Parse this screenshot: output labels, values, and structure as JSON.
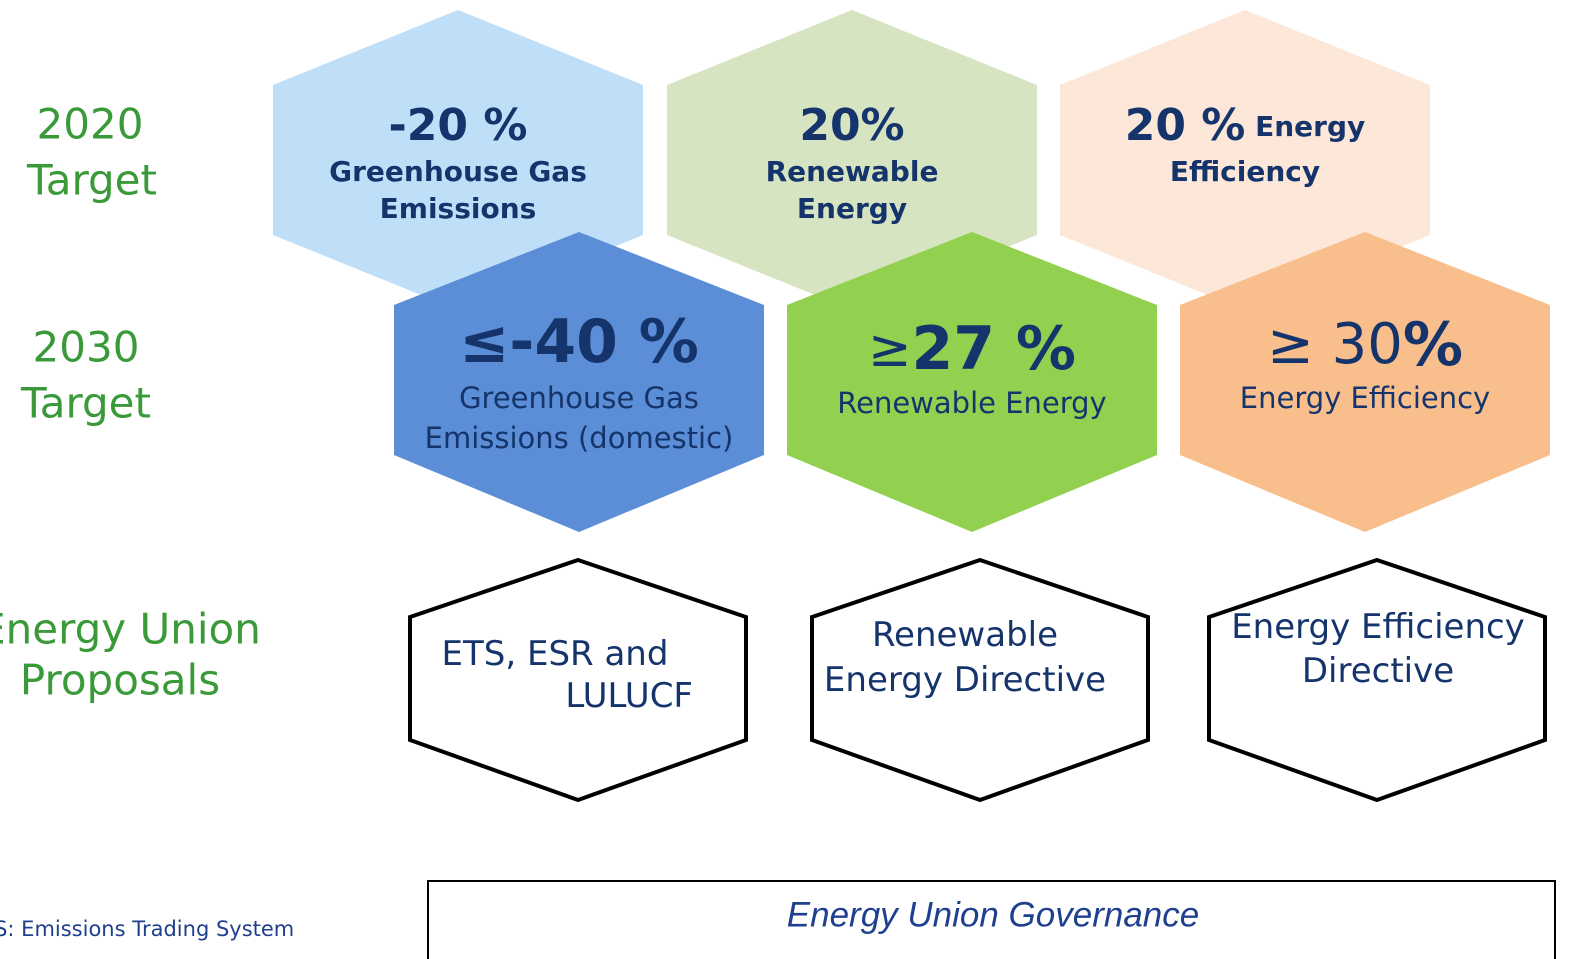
{
  "rows": [
    {
      "label": [
        "2020",
        "Target"
      ],
      "hexes": [
        {
          "lines": [
            [
              "-20 %"
            ],
            [
              "Greenhouse Gas"
            ],
            [
              "Emissions"
            ]
          ],
          "color": "#bfdff9"
        },
        {
          "lines": [
            [
              "20%"
            ],
            [
              "Renewable"
            ],
            [
              "Energy"
            ]
          ],
          "color": "#d7e4c1"
        },
        {
          "lines": [
            [
              "20 %",
              " Energy"
            ],
            [
              "Efficiency"
            ]
          ],
          "color": "#fce7d8"
        }
      ]
    },
    {
      "label": [
        "2030",
        "Target"
      ],
      "hexes": [
        {
          "lines": [
            [
              "≤-40 %"
            ],
            [
              "Greenhouse Gas"
            ],
            [
              "Emissions (domestic)"
            ]
          ],
          "color": "#5b8ed6"
        },
        {
          "lines": [
            [
              "≥",
              "27 %"
            ],
            [
              "Renewable Energy"
            ]
          ],
          "color": "#92d050"
        },
        {
          "lines": [
            [
              "≥ 30",
              "%"
            ],
            [
              "Energy Efficiency"
            ]
          ],
          "color": "#f8bf8d"
        }
      ]
    },
    {
      "label": [
        "Energy Union",
        "Proposals"
      ],
      "hexes": [
        {
          "lines": [
            [
              "ETS, ESR and"
            ],
            [
              "LULUCF"
            ]
          ],
          "color": "#ffffff"
        },
        {
          "lines": [
            [
              "Renewable"
            ],
            [
              "Energy Directive"
            ]
          ],
          "color": "#ffffff"
        },
        {
          "lines": [
            [
              "Energy Efficiency"
            ],
            [
              "Directive"
            ]
          ],
          "color": "#ffffff"
        }
      ]
    }
  ],
  "footnote": "ETS: Emissions Trading System",
  "governance": "Energy Union Governance"
}
